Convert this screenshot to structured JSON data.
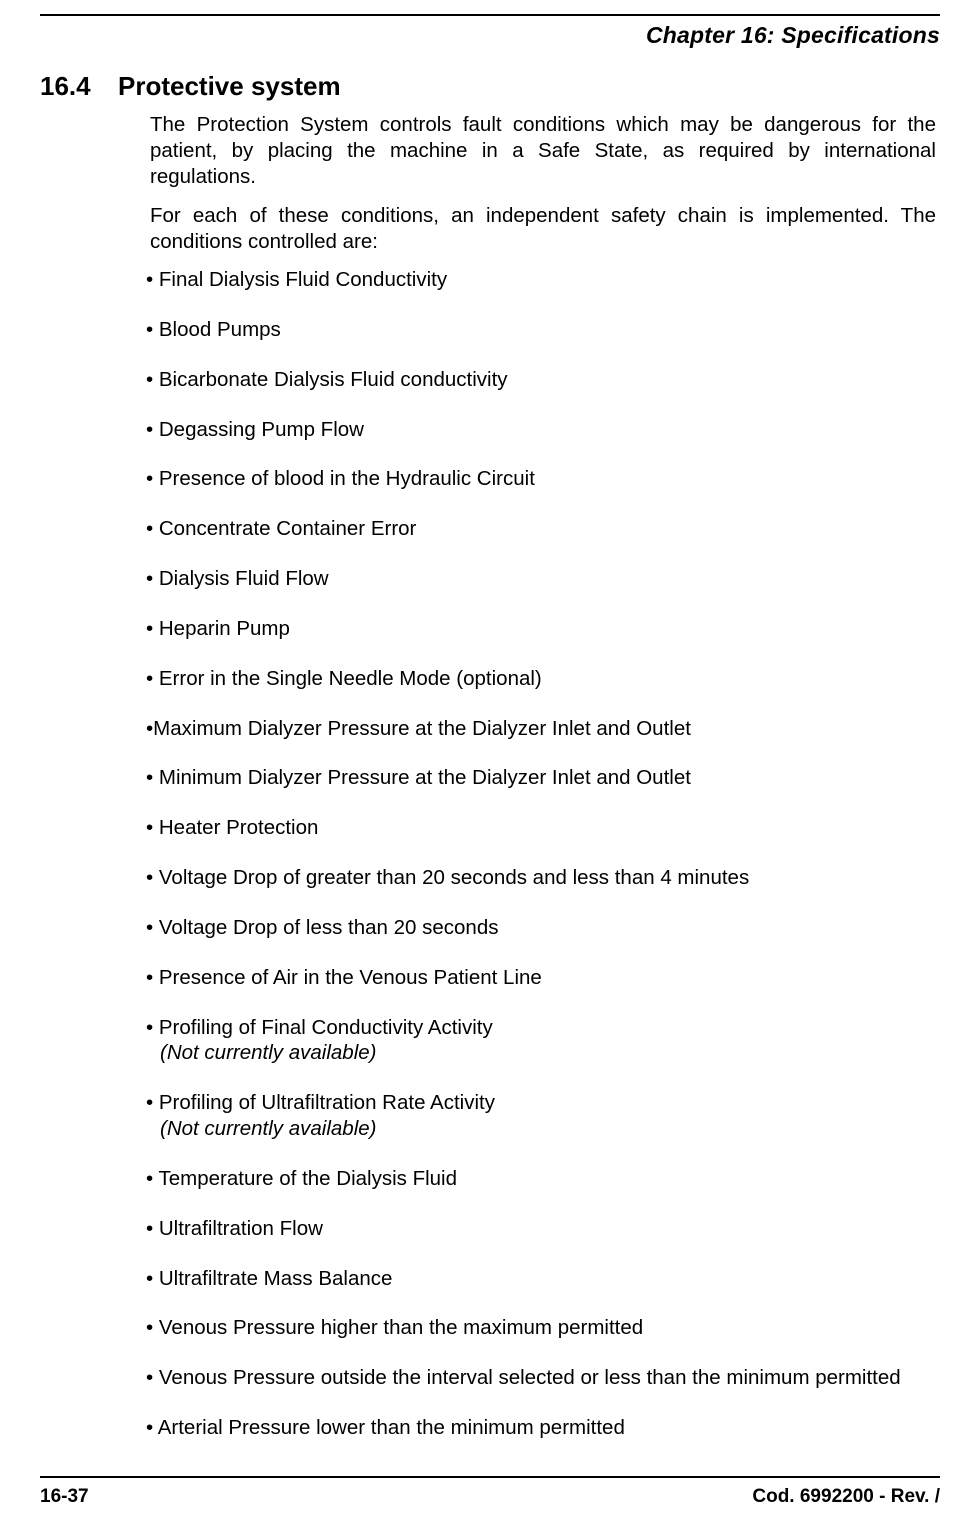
{
  "header": {
    "chapter": "Chapter 16: Specifications"
  },
  "section": {
    "number": "16.4",
    "title": "Protective system"
  },
  "paragraphs": {
    "p1": "The Protection System controls fault conditions which may be dangerous for the patient, by placing the machine in a Safe State, as required by international regulations.",
    "p2": "For each of these conditions, an independent safety chain is implemented. The conditions controlled are:"
  },
  "bullets": {
    "b1": "• Final Dialysis Fluid Conductivity",
    "b2": "• Blood Pumps",
    "b3": "• Bicarbonate Dialysis Fluid conductivity",
    "b4": "• Degassing Pump Flow",
    "b5": "• Presence of blood in the Hydraulic Circuit",
    "b6": "• Concentrate Container Error",
    "b7": "• Dialysis Fluid Flow",
    "b8": "• Heparin Pump",
    "b9": "• Error in the Single Needle Mode (optional)",
    "b10": "•Maximum Dialyzer Pressure at the Dialyzer Inlet and Outlet",
    "b11": "• Minimum Dialyzer Pressure at the Dialyzer Inlet and Outlet",
    "b12": "• Heater Protection",
    "b13": "• Voltage Drop of greater than 20 seconds and less than 4 minutes",
    "b14": "• Voltage Drop of less than 20 seconds",
    "b15": "• Presence of Air in the Venous Patient Line",
    "b16": "• Profiling of Final Conductivity Activity",
    "b16_note": "(Not currently available)",
    "b17": "• Profiling of Ultrafiltration Rate Activity",
    "b17_note": "(Not currently available)",
    "b18": "• Temperature of the Dialysis Fluid",
    "b19": "• Ultrafiltration Flow",
    "b20": "• Ultrafiltrate Mass Balance",
    "b21": "• Venous Pressure higher than the maximum permitted",
    "b22": "• Venous Pressure outside the interval selected or less than the minimum permitted",
    "b23": "• Arterial Pressure lower than the minimum permitted"
  },
  "footer": {
    "page": "16-37",
    "code": "Cod. 6992200 - Rev. /"
  }
}
